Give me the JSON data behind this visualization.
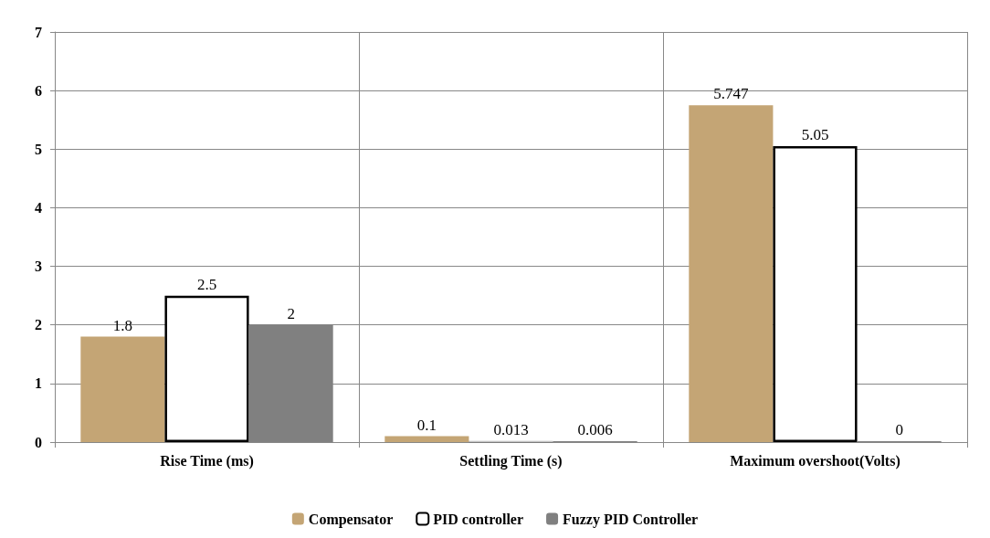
{
  "chart_data": {
    "type": "bar",
    "categories": [
      "Rise Time (ms)",
      "Settling Time (s)",
      "Maximum overshoot(Volts)"
    ],
    "series": [
      {
        "name": "Compensator",
        "color": "#c4a575",
        "values": [
          1.8,
          0.1,
          5.747
        ]
      },
      {
        "name": "PID controller",
        "color": "#ffffff",
        "values": [
          2.5,
          0.013,
          5.05
        ]
      },
      {
        "name": "Fuzzy PID Controller",
        "color": "#808080",
        "values": [
          2,
          0.006,
          0
        ]
      }
    ],
    "ylim": [
      0,
      7
    ],
    "yticks": [
      0,
      1,
      2,
      3,
      4,
      5,
      6,
      7
    ],
    "grid": true,
    "legend": "bottom",
    "data_labels": true
  }
}
